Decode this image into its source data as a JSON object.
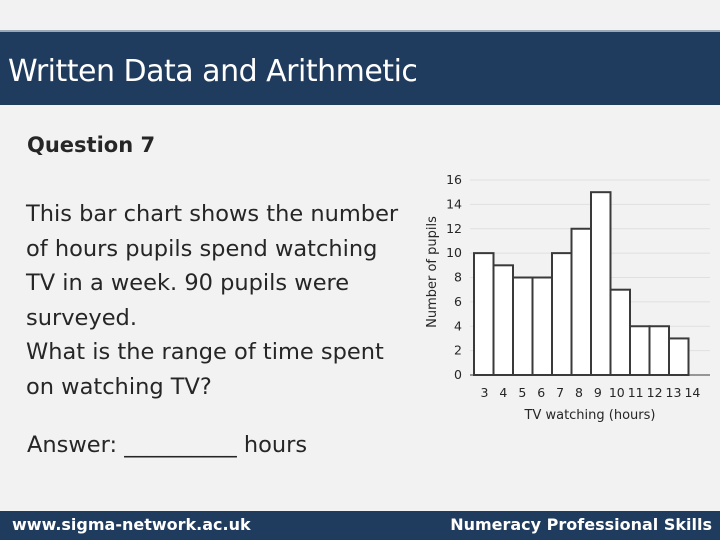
{
  "header": {
    "title": "Written Data and Arithmetic"
  },
  "question": {
    "heading": "Question 7",
    "lines": [
      "This bar chart shows the number",
      "of hours pupils spend watching",
      "TV in a week. 90 pupils were",
      "surveyed.",
      "What is the range of time spent",
      "on watching TV?"
    ],
    "answer": "Answer: __________ hours"
  },
  "footer": {
    "left": "www.sigma-network.ac.uk",
    "right": "Numeracy Professional Skills"
  },
  "colors": {
    "header": "#1f3b5e",
    "background": "#f2f2f2",
    "bar_fill": "#ffffff",
    "bar_edge": "#3a3a3a"
  },
  "chart_data": {
    "type": "bar",
    "categories": [
      "3",
      "4",
      "5",
      "6",
      "7",
      "8",
      "9",
      "10",
      "11",
      "12",
      "13",
      "14"
    ],
    "values": [
      10,
      9,
      8,
      8,
      10,
      12,
      15,
      7,
      4,
      4,
      3,
      0
    ],
    "xlabel": "TV watching (hours)",
    "ylabel": "Number of pupils",
    "y_ticks": [
      16,
      14,
      12,
      10,
      8,
      6,
      4,
      2,
      0
    ],
    "ylim": [
      0,
      16
    ],
    "grid": true,
    "legend": "none"
  }
}
